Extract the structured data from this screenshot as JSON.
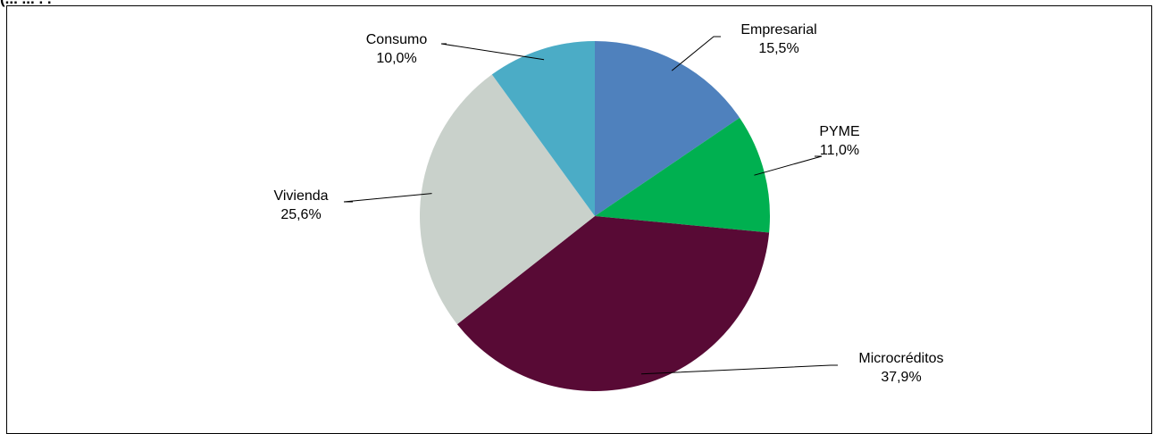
{
  "title_fragment": "(... ... . .",
  "chart_data": {
    "type": "pie",
    "title": "",
    "start_angle_deg": 0,
    "direction": "clockwise",
    "slices": [
      {
        "label": "Empresarial",
        "value": 15.5,
        "value_label": "15,5%",
        "color": "#4f81bd"
      },
      {
        "label": "PYME",
        "value": 11.0,
        "value_label": "11,0%",
        "color": "#00b050"
      },
      {
        "label": "Microcréditos",
        "value": 37.9,
        "value_label": "37,9%",
        "color": "#580a35"
      },
      {
        "label": "Vivienda",
        "value": 25.6,
        "value_label": "25,6%",
        "color": "#c9d1cb"
      },
      {
        "label": "Consumo",
        "value": 10.0,
        "value_label": "10,0%",
        "color": "#4bacc6"
      }
    ]
  }
}
